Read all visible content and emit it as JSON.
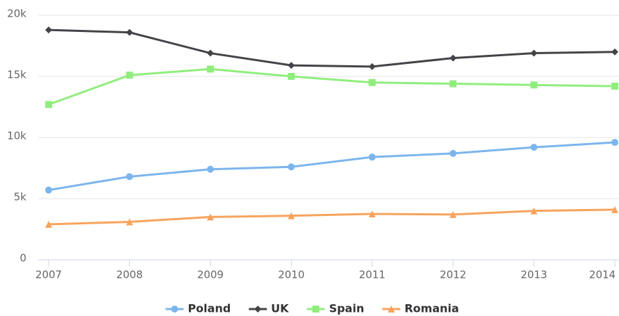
{
  "chart_data": {
    "type": "line",
    "x": [
      2007,
      2008,
      2009,
      2010,
      2011,
      2012,
      2013,
      2014
    ],
    "xlim": [
      2007,
      2014
    ],
    "xticks": [
      2007,
      2008,
      2009,
      2010,
      2011,
      2012,
      2013,
      2014
    ],
    "ylim": [
      0,
      20000
    ],
    "yticks": [
      0,
      {
        "value": 5000,
        "label": "5k"
      },
      {
        "value": 10000,
        "label": "10k"
      },
      {
        "value": 15000,
        "label": "15k"
      },
      {
        "value": 20000,
        "label": "20k"
      }
    ],
    "grid": true,
    "legend": "bottom",
    "series": [
      {
        "name": "Poland",
        "color": "#7cb5ec",
        "marker": "circle",
        "values": [
          5700,
          6800,
          7400,
          7600,
          8400,
          8700,
          9200,
          9600
        ]
      },
      {
        "name": "UK",
        "color": "#434348",
        "marker": "diamond",
        "values": [
          18800,
          18600,
          16900,
          15900,
          15800,
          16500,
          16900,
          17000
        ]
      },
      {
        "name": "Spain",
        "color": "#90ed7d",
        "marker": "square",
        "values": [
          12700,
          15100,
          15600,
          15000,
          14500,
          14400,
          14300,
          14200
        ]
      },
      {
        "name": "Romania",
        "color": "#f7a35c",
        "marker": "triangle",
        "values": [
          2900,
          3100,
          3500,
          3600,
          3750,
          3700,
          4000,
          4100
        ]
      }
    ]
  }
}
